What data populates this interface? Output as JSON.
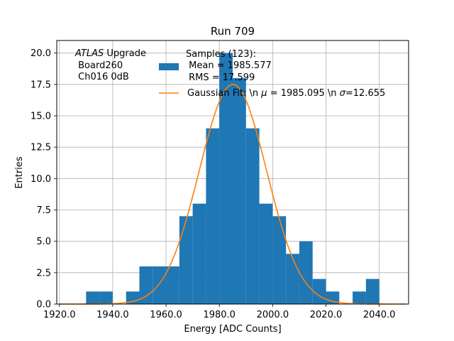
{
  "chart_data": {
    "type": "bar",
    "title": "Run 709",
    "xlabel": "Energy [ADC Counts]",
    "ylabel": "Entries",
    "xlim": [
      1919,
      2051
    ],
    "ylim": [
      0,
      21
    ],
    "x_ticks": [
      1920,
      1940,
      1960,
      1980,
      2000,
      2020,
      2040
    ],
    "x_tick_labels": [
      "1920.0",
      "1940.0",
      "1960.0",
      "1980.0",
      "2000.0",
      "2020.0",
      "2040.0"
    ],
    "y_ticks": [
      0,
      2.5,
      5,
      7.5,
      10,
      12.5,
      15,
      17.5,
      20
    ],
    "y_tick_labels": [
      "0.0",
      "2.5",
      "5.0",
      "7.5",
      "10.0",
      "12.5",
      "15.0",
      "17.5",
      "20.0"
    ],
    "grid": true,
    "bin_width": 5,
    "bins": [
      {
        "start": 1930,
        "count": 1
      },
      {
        "start": 1935,
        "count": 1
      },
      {
        "start": 1940,
        "count": 0
      },
      {
        "start": 1945,
        "count": 1
      },
      {
        "start": 1950,
        "count": 3
      },
      {
        "start": 1955,
        "count": 3
      },
      {
        "start": 1960,
        "count": 3
      },
      {
        "start": 1965,
        "count": 7
      },
      {
        "start": 1970,
        "count": 8
      },
      {
        "start": 1975,
        "count": 14
      },
      {
        "start": 1980,
        "count": 20
      },
      {
        "start": 1985,
        "count": 18
      },
      {
        "start": 1990,
        "count": 14
      },
      {
        "start": 1995,
        "count": 8
      },
      {
        "start": 2000,
        "count": 7
      },
      {
        "start": 2005,
        "count": 4
      },
      {
        "start": 2010,
        "count": 5
      },
      {
        "start": 2015,
        "count": 2
      },
      {
        "start": 2020,
        "count": 1
      },
      {
        "start": 2025,
        "count": 0
      },
      {
        "start": 2030,
        "count": 1
      },
      {
        "start": 2035,
        "count": 2
      }
    ],
    "gaussian_fit": {
      "mu": 1985.095,
      "sigma": 12.655,
      "amplitude": 17.5
    },
    "series": [
      {
        "name": "Samples (123):\n Mean = 1985.577\n RMS = 17.599",
        "color": "#1f77b4"
      },
      {
        "name": "Gaussian Fit: \\n $\\mu$ = 1985.095 \\n $\\sigma$=12.655",
        "color": "#ff7f0e"
      }
    ],
    "legend": {
      "position": "top-right",
      "samples_lines": [
        "Samples (123):",
        " Mean = 1985.577",
        " RMS = 17.599"
      ],
      "fit_prefix": "Gaussian Fit: \\n ",
      "fit_mu_symbol": "μ",
      "fit_mu_text": " = 1985.095 \\n ",
      "fit_sigma_symbol": "σ",
      "fit_sigma_text": "=12.655"
    },
    "annotation": {
      "experiment": "ATLAS",
      "suffix": " Upgrade",
      "line2": " Board260",
      "line3": " Ch016 0dB"
    }
  }
}
